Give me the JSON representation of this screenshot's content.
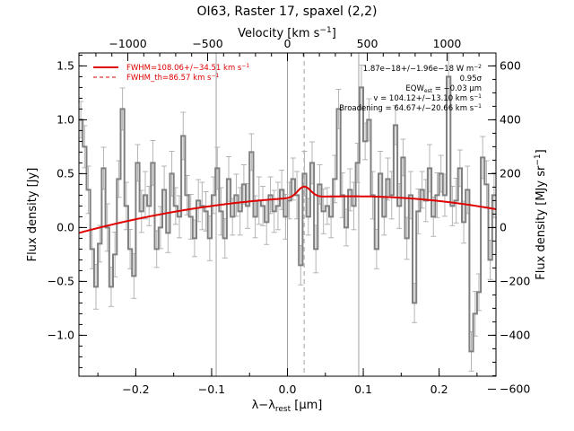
{
  "title": "OI63, Raster 17, spaxel (2,2)",
  "colors": {
    "spectrum": "#808080",
    "errorbar": "#b4b4b4",
    "fit": "#e00000",
    "grid": "#a0a0a0",
    "annotation": "#000000"
  },
  "axes": {
    "bottom": {
      "label": "λ−λ",
      "label_sub": "rest",
      "label_tail": " [μm]",
      "range": [
        -0.275,
        0.275
      ],
      "ticks": [
        -0.2,
        -0.1,
        0.0,
        0.1,
        0.2
      ],
      "tick_labels": [
        "−0.2",
        "−0.1",
        "0.0",
        "0.1",
        "0.2"
      ]
    },
    "top": {
      "label": "Velocity [km s",
      "label_sup": "−1",
      "label_tail": "]",
      "ticks": [
        -1000,
        -500,
        0,
        500,
        1000
      ],
      "tick_labels": [
        "−1000",
        "−500",
        "0",
        "500",
        "1000"
      ],
      "km_s_per_um": 4750
    },
    "left": {
      "label": "Flux density [Jy]",
      "range": [
        -1.38,
        1.62
      ],
      "ticks": [
        -1.0,
        -0.5,
        0.0,
        0.5,
        1.0,
        1.5
      ],
      "tick_labels": [
        "−1.0",
        "−0.5",
        "0.0",
        "0.5",
        "1.0",
        "1.5"
      ]
    },
    "right": {
      "label": "Flux density [MJy sr",
      "label_sup": "−1",
      "label_tail": "]",
      "ticks": [
        -600,
        -400,
        -200,
        0,
        200,
        400,
        600
      ],
      "tick_labels": [
        "−600",
        "−400",
        "−200",
        "0",
        "200",
        "400",
        "600"
      ],
      "mjysr_per_jy": 400
    }
  },
  "legend": [
    {
      "label": "FWHM=108.06+/−34.51 km s",
      "sup": "−1",
      "style": "solid"
    },
    {
      "label": "FWHM_th=86.57 km s",
      "sup": "−1",
      "style": "dashed"
    }
  ],
  "annotations": [
    {
      "pre": "1.87e−18+/−1.96e−18 W m",
      "sup": "−2"
    },
    {
      "pre": "0.95σ"
    },
    {
      "pre": "EQW",
      "sub": "est",
      "post": " = −0.03 μm"
    },
    {
      "pre": "v = 104.12+/−13.10 km s",
      "sup": "−1"
    },
    {
      "pre": "Broadening = 64.67+/−20.66 km s",
      "sup": "−1"
    }
  ],
  "chart_data": {
    "type": "line",
    "title": "OI63, Raster 17, spaxel (2,2)",
    "xlabel": "λ−λrest [μm]",
    "ylabel": "Flux density [Jy]",
    "xlim": [
      -0.275,
      0.275
    ],
    "ylim": [
      -1.38,
      1.62
    ],
    "vertical_lines": {
      "solid": [
        -0.094,
        0.0,
        0.094
      ],
      "dashed": [
        0.022
      ]
    },
    "series": [
      {
        "name": "spectrum",
        "style": "step",
        "x": [
          -0.275,
          -0.27,
          -0.265,
          -0.26,
          -0.255,
          -0.25,
          -0.245,
          -0.24,
          -0.235,
          -0.23,
          -0.225,
          -0.22,
          -0.215,
          -0.21,
          -0.205,
          -0.2,
          -0.195,
          -0.19,
          -0.185,
          -0.18,
          -0.175,
          -0.17,
          -0.165,
          -0.16,
          -0.155,
          -0.15,
          -0.145,
          -0.14,
          -0.135,
          -0.13,
          -0.125,
          -0.12,
          -0.115,
          -0.11,
          -0.105,
          -0.1,
          -0.095,
          -0.09,
          -0.085,
          -0.08,
          -0.075,
          -0.07,
          -0.065,
          -0.06,
          -0.055,
          -0.05,
          -0.045,
          -0.04,
          -0.035,
          -0.03,
          -0.025,
          -0.02,
          -0.015,
          -0.01,
          -0.005,
          0.0,
          0.005,
          0.01,
          0.015,
          0.02,
          0.025,
          0.03,
          0.035,
          0.04,
          0.045,
          0.05,
          0.055,
          0.06,
          0.065,
          0.07,
          0.075,
          0.08,
          0.085,
          0.09,
          0.095,
          0.1,
          0.105,
          0.11,
          0.115,
          0.12,
          0.125,
          0.13,
          0.135,
          0.14,
          0.145,
          0.15,
          0.155,
          0.16,
          0.165,
          0.17,
          0.175,
          0.18,
          0.185,
          0.19,
          0.195,
          0.2,
          0.205,
          0.21,
          0.215,
          0.22,
          0.225,
          0.23,
          0.235,
          0.24,
          0.245,
          0.25,
          0.255,
          0.26,
          0.265,
          0.27
        ],
        "y": [
          1.0,
          0.75,
          0.35,
          -0.2,
          -0.55,
          -0.15,
          0.55,
          0.0,
          -0.55,
          -0.25,
          0.45,
          1.1,
          0.2,
          -0.2,
          -0.45,
          0.6,
          0.15,
          0.3,
          0.2,
          0.6,
          -0.2,
          0.0,
          0.35,
          -0.05,
          0.5,
          0.2,
          0.1,
          0.85,
          0.3,
          0.1,
          -0.1,
          0.25,
          0.2,
          0.15,
          -0.1,
          0.3,
          0.55,
          0.15,
          -0.1,
          0.45,
          0.1,
          0.3,
          0.15,
          0.4,
          0.2,
          0.7,
          0.1,
          0.25,
          0.2,
          0.05,
          0.3,
          0.15,
          0.2,
          0.35,
          0.1,
          0.25,
          0.45,
          0.3,
          -0.35,
          0.5,
          0.1,
          0.6,
          -0.2,
          0.4,
          0.15,
          0.2,
          0.1,
          0.45,
          1.1,
          0.3,
          0.0,
          0.35,
          0.2,
          0.6,
          1.3,
          0.8,
          1.0,
          0.3,
          -0.2,
          0.5,
          0.1,
          0.45,
          0.3,
          0.95,
          0.2,
          0.65,
          -0.1,
          0.3,
          -0.7,
          0.15,
          0.35,
          0.25,
          0.55,
          0.1,
          0.3,
          0.5,
          0.3,
          1.4,
          0.2,
          0.25,
          0.55,
          0.05,
          0.35,
          -1.15,
          -0.8,
          -0.6,
          0.65,
          0.4,
          -0.3,
          0.3
        ]
      },
      {
        "name": "FWHM=108.06+/−34.51 km s−1",
        "style": "fit",
        "baseline": {
          "at_x_min": -0.05,
          "at_x0": 0.29,
          "at_x_max": 0.17,
          "x0": 0.085
        },
        "gaussian": {
          "amplitude": 0.1,
          "center": 0.022,
          "sigma": 0.0085
        }
      }
    ]
  }
}
